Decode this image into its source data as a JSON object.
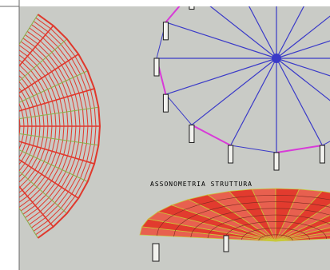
{
  "drawing": {
    "label": "ASSONOMETRIA STRUTTURA",
    "colors": {
      "background": "#c9cbc6",
      "border": "#6a6a6a",
      "plan_rib": "#e0382c",
      "plan_accent": "#8ab04a",
      "spoke": "#3a3ac8",
      "tie": "#d83ad8",
      "column": "#1a1a1a",
      "roof_fill": "#e23b2e",
      "roof_line": "#c8c83a"
    }
  }
}
